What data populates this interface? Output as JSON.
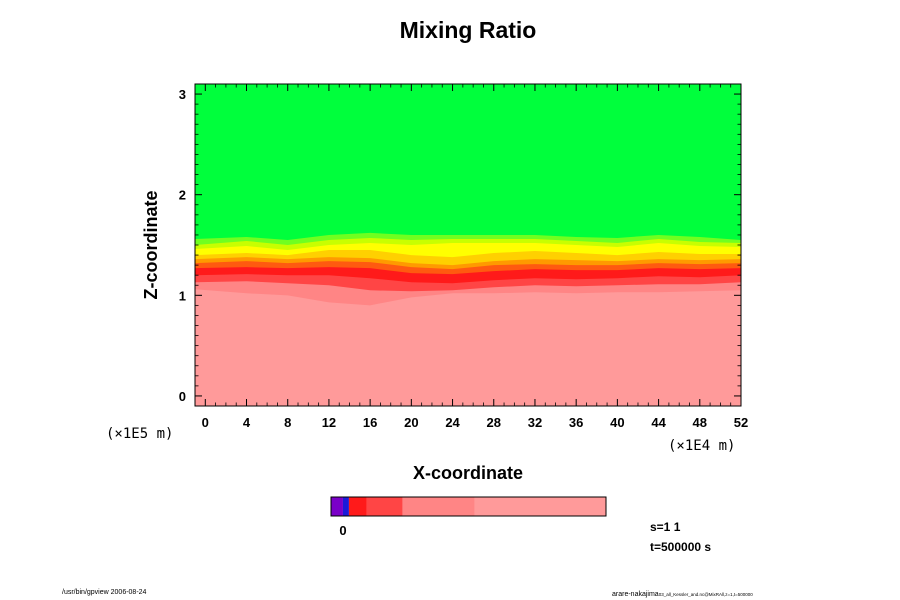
{
  "colors": {
    "pink": "#ff9a9a",
    "salmon": "#ff8585",
    "red_mid": "#ff4545",
    "red": "#ff1a1a",
    "orange_red": "#ff5a10",
    "orange": "#ff9a00",
    "yellow_orange": "#ffd000",
    "yellow": "#ffff00",
    "yellow_green": "#c8ff00",
    "light_green": "#70ff20",
    "green": "#00ff3c",
    "violet": "#7a00c8",
    "blue": "#1a1ad8"
  },
  "chart_data": {
    "type": "heatmap",
    "title": "Mixing Ratio",
    "xlabel": "X-coordinate",
    "ylabel": "Z-coordinate",
    "xunit": "(×1E4 m)",
    "yunit": "(×1E5 m)",
    "xlim": [
      -1,
      52
    ],
    "ylim": [
      -0.1,
      3.1
    ],
    "xticks": [
      0,
      4,
      8,
      12,
      16,
      20,
      24,
      28,
      32,
      36,
      40,
      44,
      48,
      52
    ],
    "yticks": [
      0,
      1,
      2,
      3
    ],
    "xticklabels": [
      "0",
      "4",
      "8",
      "12",
      "16",
      "20",
      "24",
      "28",
      "32",
      "36",
      "40",
      "44",
      "48",
      "52"
    ],
    "yticklabels": [
      "0",
      "1",
      "2",
      "3"
    ],
    "bands": [
      {
        "color": "green",
        "bottom": [
          [
            -1,
            1.56
          ],
          [
            4,
            1.58
          ],
          [
            8,
            1.55
          ],
          [
            12,
            1.6
          ],
          [
            16,
            1.62
          ],
          [
            20,
            1.6
          ],
          [
            24,
            1.6
          ],
          [
            28,
            1.6
          ],
          [
            32,
            1.6
          ],
          [
            36,
            1.58
          ],
          [
            40,
            1.57
          ],
          [
            44,
            1.6
          ],
          [
            48,
            1.58
          ],
          [
            52,
            1.55
          ]
        ]
      },
      {
        "color": "light_green",
        "bottom": [
          [
            -1,
            1.5
          ],
          [
            4,
            1.54
          ],
          [
            8,
            1.5
          ],
          [
            12,
            1.55
          ],
          [
            16,
            1.57
          ],
          [
            20,
            1.55
          ],
          [
            24,
            1.56
          ],
          [
            28,
            1.56
          ],
          [
            32,
            1.56
          ],
          [
            36,
            1.54
          ],
          [
            40,
            1.52
          ],
          [
            44,
            1.56
          ],
          [
            48,
            1.53
          ],
          [
            52,
            1.52
          ]
        ]
      },
      {
        "color": "yellow_green",
        "bottom": [
          [
            -1,
            1.46
          ],
          [
            4,
            1.49
          ],
          [
            8,
            1.45
          ],
          [
            12,
            1.5
          ],
          [
            16,
            1.52
          ],
          [
            20,
            1.5
          ],
          [
            24,
            1.52
          ],
          [
            28,
            1.52
          ],
          [
            32,
            1.52
          ],
          [
            36,
            1.5
          ],
          [
            40,
            1.48
          ],
          [
            44,
            1.52
          ],
          [
            48,
            1.49
          ],
          [
            52,
            1.48
          ]
        ]
      },
      {
        "color": "yellow",
        "bottom": [
          [
            -1,
            1.4
          ],
          [
            4,
            1.42
          ],
          [
            8,
            1.4
          ],
          [
            12,
            1.45
          ],
          [
            16,
            1.45
          ],
          [
            20,
            1.4
          ],
          [
            24,
            1.38
          ],
          [
            28,
            1.42
          ],
          [
            32,
            1.44
          ],
          [
            36,
            1.42
          ],
          [
            40,
            1.4
          ],
          [
            44,
            1.43
          ],
          [
            48,
            1.41
          ],
          [
            52,
            1.41
          ]
        ]
      },
      {
        "color": "yellow_orange",
        "bottom": [
          [
            -1,
            1.36
          ],
          [
            4,
            1.38
          ],
          [
            8,
            1.36
          ],
          [
            12,
            1.38
          ],
          [
            16,
            1.37
          ],
          [
            20,
            1.32
          ],
          [
            24,
            1.3
          ],
          [
            28,
            1.34
          ],
          [
            32,
            1.36
          ],
          [
            36,
            1.35
          ],
          [
            40,
            1.34
          ],
          [
            44,
            1.36
          ],
          [
            48,
            1.35
          ],
          [
            52,
            1.36
          ]
        ]
      },
      {
        "color": "orange",
        "bottom": [
          [
            -1,
            1.32
          ],
          [
            4,
            1.34
          ],
          [
            8,
            1.32
          ],
          [
            12,
            1.34
          ],
          [
            16,
            1.33
          ],
          [
            20,
            1.28
          ],
          [
            24,
            1.26
          ],
          [
            28,
            1.3
          ],
          [
            32,
            1.31
          ],
          [
            36,
            1.3
          ],
          [
            40,
            1.3
          ],
          [
            44,
            1.32
          ],
          [
            48,
            1.31
          ],
          [
            52,
            1.32
          ]
        ]
      },
      {
        "color": "orange_red",
        "bottom": [
          [
            -1,
            1.27
          ],
          [
            4,
            1.28
          ],
          [
            8,
            1.27
          ],
          [
            12,
            1.28
          ],
          [
            16,
            1.27
          ],
          [
            20,
            1.22
          ],
          [
            24,
            1.21
          ],
          [
            28,
            1.24
          ],
          [
            32,
            1.26
          ],
          [
            36,
            1.25
          ],
          [
            40,
            1.25
          ],
          [
            44,
            1.27
          ],
          [
            48,
            1.26
          ],
          [
            52,
            1.27
          ]
        ]
      },
      {
        "color": "red",
        "bottom": [
          [
            -1,
            1.2
          ],
          [
            4,
            1.21
          ],
          [
            8,
            1.2
          ],
          [
            12,
            1.2
          ],
          [
            16,
            1.17
          ],
          [
            20,
            1.13
          ],
          [
            24,
            1.12
          ],
          [
            28,
            1.15
          ],
          [
            32,
            1.17
          ],
          [
            36,
            1.16
          ],
          [
            40,
            1.17
          ],
          [
            44,
            1.19
          ],
          [
            48,
            1.18
          ],
          [
            52,
            1.2
          ]
        ]
      },
      {
        "color": "red_mid",
        "bottom": [
          [
            -1,
            1.13
          ],
          [
            4,
            1.14
          ],
          [
            8,
            1.12
          ],
          [
            12,
            1.1
          ],
          [
            16,
            1.05
          ],
          [
            20,
            1.04
          ],
          [
            24,
            1.05
          ],
          [
            28,
            1.08
          ],
          [
            32,
            1.1
          ],
          [
            36,
            1.09
          ],
          [
            40,
            1.1
          ],
          [
            44,
            1.11
          ],
          [
            48,
            1.11
          ],
          [
            52,
            1.13
          ]
        ]
      },
      {
        "color": "salmon",
        "bottom": [
          [
            -1,
            1.06
          ],
          [
            4,
            1.02
          ],
          [
            8,
            1.0
          ],
          [
            12,
            0.93
          ],
          [
            16,
            0.9
          ],
          [
            20,
            0.98
          ],
          [
            24,
            1.02
          ],
          [
            28,
            1.02
          ],
          [
            32,
            1.03
          ],
          [
            36,
            1.02
          ],
          [
            40,
            1.03
          ],
          [
            44,
            1.03
          ],
          [
            48,
            1.04
          ],
          [
            52,
            1.05
          ]
        ]
      }
    ],
    "base_color": "pink",
    "colorbar": {
      "segments": [
        {
          "color": "violet",
          "weight": 1
        },
        {
          "color": "blue",
          "weight": 0.5
        },
        {
          "color": "red",
          "weight": 1.5
        },
        {
          "color": "red_mid",
          "weight": 3
        },
        {
          "color": "salmon",
          "weight": 6
        },
        {
          "color": "pink",
          "weight": 11
        }
      ],
      "ticklabel": "0"
    },
    "info": [
      "s=1 1",
      "t=500000 s"
    ]
  },
  "footer": {
    "left": "/usr/bin/gpview 2006-08-24",
    "right": "arare-nakajima",
    "right_small": "03_all_Kessler_and.nc@MixRAll,z=1,t=500000"
  }
}
